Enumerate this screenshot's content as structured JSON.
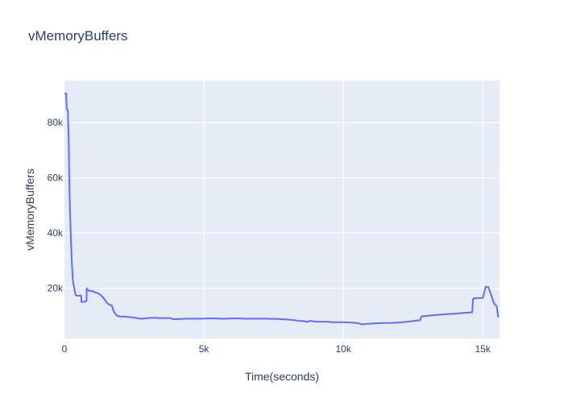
{
  "chart_data": {
    "type": "line",
    "title": "vMemoryBuffers",
    "xlabel": "Time(seconds)",
    "ylabel": "vMemoryBuffers",
    "xlim": [
      0,
      15600
    ],
    "ylim": [
      1800,
      95200
    ],
    "x_ticks": [
      0,
      5000,
      10000,
      15000
    ],
    "x_tick_labels": [
      "0",
      "5k",
      "10k",
      "15k"
    ],
    "y_ticks": [
      20000,
      40000,
      60000,
      80000
    ],
    "y_tick_labels": [
      "20k",
      "40k",
      "60k",
      "80k"
    ],
    "grid": true,
    "colors": {
      "line": "#636efa",
      "plot_bg": "#e5ecf6",
      "grid": "#ffffff",
      "text": "#2a3f5f"
    },
    "series": [
      {
        "name": "",
        "x": [
          0,
          60,
          80,
          120,
          150,
          180,
          230,
          260,
          300,
          350,
          400,
          460,
          600,
          610,
          750,
          790,
          800,
          830,
          900,
          1000,
          1100,
          1200,
          1300,
          1400,
          1500,
          1600,
          1700,
          1750,
          1800,
          1850,
          1860,
          1900,
          2000,
          2200,
          2400,
          2600,
          2700,
          2800,
          3000,
          3200,
          3300,
          3400,
          3800,
          3900,
          4000,
          4200,
          4400,
          4600,
          4800,
          5000,
          5200,
          5400,
          5600,
          5800,
          6000,
          6200,
          6400,
          6600,
          6800,
          7000,
          7200,
          7400,
          7600,
          7800,
          8000,
          8200,
          8400,
          8600,
          8700,
          8800,
          9000,
          9200,
          9400,
          9600,
          9800,
          10000,
          10200,
          10400,
          10600,
          10650,
          10800,
          11000,
          11200,
          11400,
          11600,
          11800,
          12000,
          12200,
          12400,
          12600,
          12750,
          12800,
          13000,
          13500,
          14000,
          14500,
          14620,
          14650,
          14700,
          15000,
          15100,
          15200,
          15300,
          15400,
          15450,
          15500,
          15550
        ],
        "y": [
          90500,
          90500,
          85000,
          84500,
          75000,
          55000,
          38000,
          30000,
          23000,
          20000,
          17500,
          17300,
          17300,
          15000,
          15200,
          15500,
          20000,
          19500,
          19000,
          19000,
          18500,
          18200,
          17500,
          16500,
          15000,
          14000,
          13800,
          12000,
          11000,
          10500,
          10200,
          10000,
          9800,
          9700,
          9500,
          9200,
          9000,
          9000,
          9200,
          9300,
          9300,
          9200,
          9200,
          8800,
          8800,
          8900,
          9000,
          9000,
          9000,
          9000,
          9100,
          9100,
          9000,
          9000,
          9100,
          9100,
          9000,
          9000,
          9000,
          9000,
          9000,
          8900,
          8900,
          8800,
          8700,
          8500,
          8200,
          8100,
          7800,
          8200,
          7900,
          7900,
          7900,
          7700,
          7700,
          7700,
          7600,
          7500,
          7200,
          6900,
          7100,
          7200,
          7300,
          7400,
          7400,
          7500,
          7600,
          7800,
          8000,
          8300,
          8400,
          9800,
          10000,
          10500,
          10800,
          11200,
          11300,
          16200,
          16400,
          16500,
          20500,
          20400,
          17500,
          14500,
          14000,
          13500,
          9500
        ]
      }
    ]
  }
}
